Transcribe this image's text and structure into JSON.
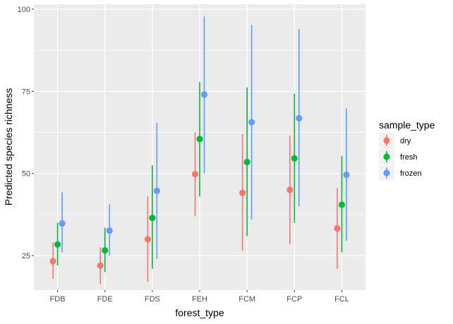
{
  "chart_data": {
    "type": "scatter",
    "subtype": "pointrange",
    "xlabel": "forest_type",
    "ylabel": "Predicted species richness",
    "categories": [
      "FDB",
      "FDE",
      "FDS",
      "FEH",
      "FCM",
      "FCP",
      "FCL"
    ],
    "y_ticks": [
      25,
      50,
      75,
      100
    ],
    "ylim": [
      14.5,
      101.5
    ],
    "grid": true,
    "legend": {
      "title": "sample_type",
      "position": "right"
    },
    "series": [
      {
        "name": "dry",
        "color": "#F8766D",
        "values": [
          23.3,
          22.0,
          30.0,
          49.8,
          44.1,
          45.0,
          33.3
        ],
        "lower": [
          18.0,
          16.3,
          17.0,
          37.0,
          26.5,
          28.5,
          21.0
        ],
        "upper": [
          29.0,
          27.5,
          43.0,
          62.5,
          62.0,
          61.5,
          45.5
        ]
      },
      {
        "name": "fresh",
        "color": "#00BA38",
        "values": [
          28.4,
          26.6,
          36.5,
          60.5,
          53.5,
          54.6,
          40.5
        ],
        "lower": [
          22.0,
          20.0,
          21.0,
          43.0,
          31.0,
          35.0,
          26.0
        ],
        "upper": [
          35.0,
          33.5,
          52.5,
          77.8,
          76.2,
          74.3,
          55.3
        ]
      },
      {
        "name": "frozen",
        "color": "#619CFF",
        "values": [
          34.8,
          32.6,
          44.7,
          74.0,
          65.6,
          66.8,
          49.6
        ],
        "lower": [
          26.0,
          25.0,
          24.0,
          50.0,
          36.0,
          40.0,
          29.5
        ],
        "upper": [
          44.3,
          40.6,
          65.4,
          97.8,
          95.2,
          94.0,
          69.8
        ]
      }
    ]
  }
}
